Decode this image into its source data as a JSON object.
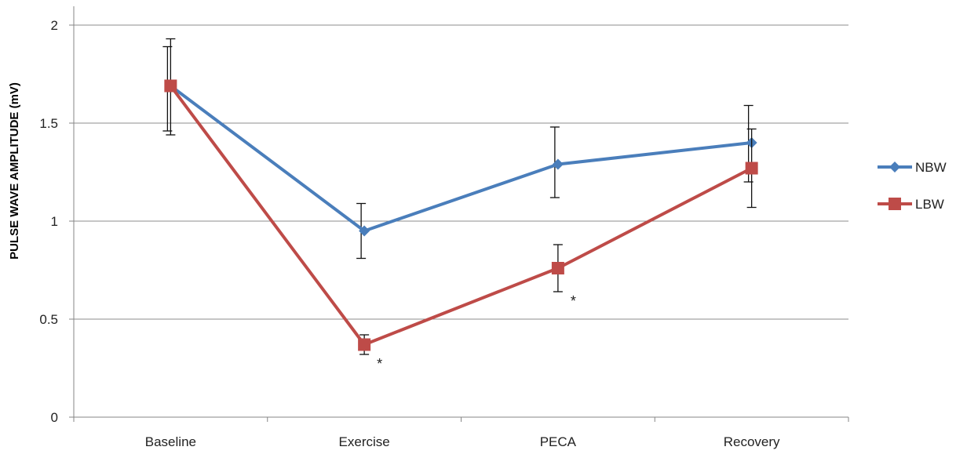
{
  "chart_data": {
    "type": "line",
    "ylabel": "PULSE WAVE AMPLITUDE  (mV)",
    "categories": [
      "Baseline",
      "Exercise",
      "PECA",
      "Recovery"
    ],
    "ylim": [
      0,
      2
    ],
    "yticks": [
      0,
      0.5,
      1,
      1.5,
      2
    ],
    "ytick_labels": [
      "0",
      "0.5",
      "1",
      "1.5",
      "2"
    ],
    "grid": true,
    "legend_position": "right",
    "series": [
      {
        "name": "NBW",
        "color": "#4a7ebb",
        "marker": "diamond",
        "values": [
          1.69,
          0.95,
          1.29,
          1.4
        ],
        "error_low": [
          0.23,
          0.14,
          0.17,
          0.2
        ],
        "error_high": [
          0.2,
          0.14,
          0.19,
          0.19
        ]
      },
      {
        "name": "LBW",
        "color": "#be4b48",
        "marker": "square",
        "values": [
          1.69,
          0.37,
          0.76,
          1.27
        ],
        "error_low": [
          0.25,
          0.05,
          0.12,
          0.2
        ],
        "error_high": [
          0.24,
          0.05,
          0.12,
          0.2
        ]
      }
    ],
    "annotations": [
      {
        "text": "*",
        "category": "Exercise",
        "series": "LBW"
      },
      {
        "text": "*",
        "category": "PECA",
        "series": "LBW"
      }
    ]
  }
}
